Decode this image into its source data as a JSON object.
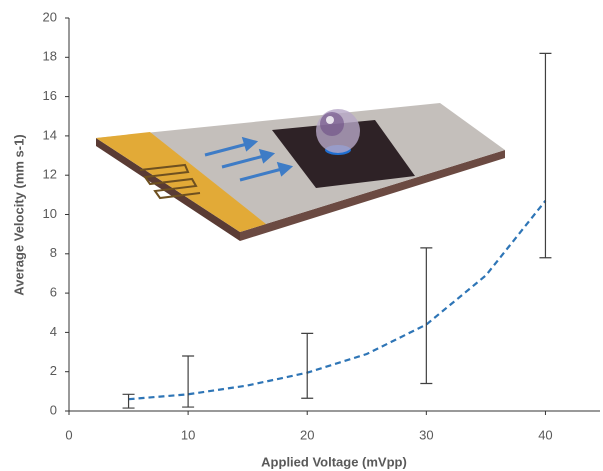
{
  "chart_data": {
    "type": "scatter",
    "x_label": "Applied Voltage  (mVpp)",
    "y_label": "Average Velocity (mm s-1)",
    "xlim": [
      0,
      45
    ],
    "xticks": [
      0,
      10,
      20,
      30,
      40
    ],
    "ylim": [
      0,
      20
    ],
    "yticks": [
      0,
      2,
      4,
      6,
      8,
      10,
      12,
      14,
      16,
      18,
      20
    ],
    "series": [
      {
        "color": "#000000",
        "x": [
          5,
          10,
          20,
          30,
          40
        ],
        "values": [
          0.5,
          1.5,
          2.3,
          4.85,
          13.0
        ],
        "errors": [
          0.35,
          1.3,
          1.65,
          3.45,
          5.2
        ]
      }
    ],
    "trendline": {
      "color": "#2e75b6",
      "x": [
        5,
        10,
        15,
        20,
        25,
        30,
        35,
        40
      ],
      "values": [
        0.6,
        0.85,
        1.3,
        1.95,
        2.9,
        4.4,
        6.9,
        10.7
      ]
    }
  }
}
